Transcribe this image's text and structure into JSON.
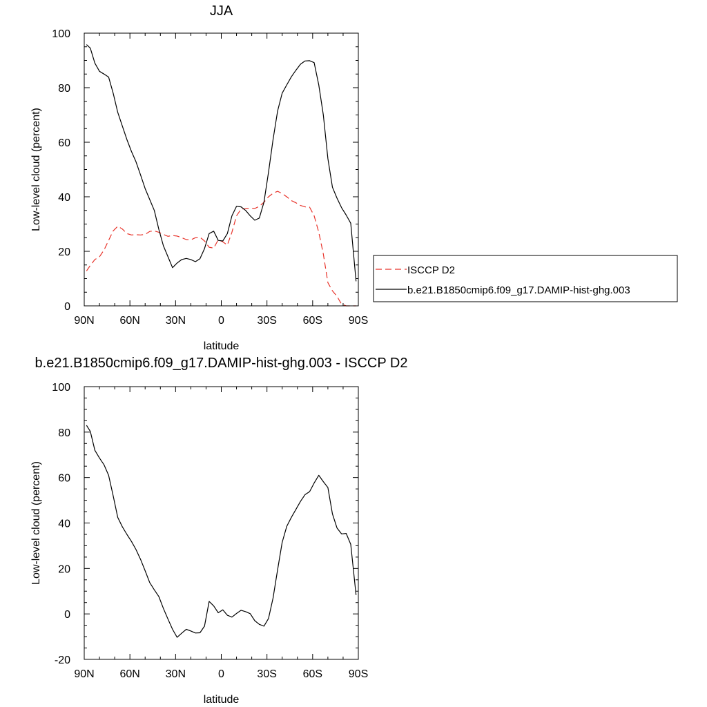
{
  "chart_data": [
    {
      "type": "line",
      "title": "JJA",
      "xlabel": "latitude",
      "ylabel": "Low-level cloud (percent)",
      "xlim": [
        -90,
        90
      ],
      "ylim": [
        0,
        100
      ],
      "x_tick_values": [
        -90,
        -60,
        -30,
        0,
        30,
        60,
        90
      ],
      "x_tick_labels": [
        "90N",
        "60N",
        "30N",
        "0",
        "30S",
        "60S",
        "90S"
      ],
      "y_ticks": [
        0,
        20,
        40,
        60,
        80,
        100
      ],
      "x_axis_note": "x measured from north (-90 = 90N) to south (90 = 90S)",
      "legend": {
        "position": "right"
      },
      "series": [
        {
          "name": "ISCCP D2",
          "color": "#e8332a",
          "dash": "dashed",
          "x": [
            -88.5,
            -86,
            -83,
            -80,
            -77,
            -74,
            -71,
            -68,
            -65,
            -62,
            -59,
            -56,
            -53,
            -50,
            -47,
            -44,
            -41,
            -38,
            -35,
            -32,
            -29,
            -26,
            -23,
            -20,
            -17,
            -14,
            -11,
            -8,
            -5,
            -2,
            1,
            4,
            7,
            10,
            13,
            16,
            19,
            22,
            25,
            28,
            31,
            34,
            37,
            40,
            43,
            46,
            49,
            52,
            55,
            58,
            61,
            64,
            67,
            70,
            73,
            76,
            79,
            82,
            85,
            88.5
          ],
          "y": [
            12.8,
            14.8,
            17,
            18,
            20.5,
            24,
            27.5,
            29.2,
            28.2,
            26.5,
            26,
            26.1,
            26,
            26.2,
            27.3,
            27.5,
            27,
            26.2,
            25.5,
            25.8,
            25.6,
            25,
            24.3,
            24.2,
            25,
            25.2,
            23.8,
            21.5,
            21.2,
            24.2,
            23.5,
            22.3,
            27,
            33,
            35.5,
            35.6,
            35.8,
            35.7,
            36.5,
            38,
            40,
            41.3,
            42,
            41.2,
            40,
            38.6,
            37.8,
            36.8,
            36.3,
            36.2,
            33,
            27,
            19,
            8.5,
            5.5,
            3.5,
            0.6,
            0,
            0,
            0
          ]
        },
        {
          "name": "b.e21.B1850cmip6.f09_g17.DAMIP-hist-ghg.003",
          "color": "#000000",
          "dash": "solid",
          "x": [
            -88.5,
            -86,
            -83,
            -80,
            -77,
            -74,
            -71,
            -68,
            -65,
            -62,
            -59,
            -56,
            -53,
            -50,
            -47,
            -44,
            -41,
            -38,
            -35,
            -32,
            -29,
            -26,
            -23,
            -20,
            -17,
            -14,
            -11,
            -8,
            -5,
            -2,
            1,
            4,
            7,
            10,
            13,
            16,
            19,
            22,
            25,
            28,
            31,
            34,
            37,
            40,
            43,
            46,
            49,
            52,
            55,
            58,
            61,
            64,
            67,
            70,
            73,
            76,
            79,
            82,
            85,
            88.5
          ],
          "y": [
            95.8,
            94.5,
            89,
            86,
            85,
            83.9,
            78,
            71,
            66,
            61,
            56.6,
            52.8,
            48,
            43,
            39,
            35,
            28,
            22,
            18,
            14,
            15.7,
            17,
            17.4,
            17,
            16.2,
            17.3,
            21,
            26.5,
            27.4,
            24,
            23.8,
            26.5,
            33,
            36.5,
            36.3,
            35,
            33,
            31.4,
            32.2,
            38,
            49,
            61,
            71.5,
            78,
            81,
            84,
            86.4,
            88.6,
            89.8,
            89.9,
            89.2,
            81,
            70,
            54,
            43.5,
            39.5,
            36,
            33.3,
            30.3,
            9
          ]
        }
      ]
    },
    {
      "type": "line",
      "title": "b.e21.B1850cmip6.f09_g17.DAMIP-hist-ghg.003 - ISCCP D2",
      "xlabel": "latitude",
      "ylabel": "Low-level cloud (percent)",
      "xlim": [
        -90,
        90
      ],
      "ylim": [
        -20,
        100
      ],
      "x_tick_values": [
        -90,
        -60,
        -30,
        0,
        30,
        60,
        90
      ],
      "x_tick_labels": [
        "90N",
        "60N",
        "30N",
        "0",
        "30S",
        "60S",
        "90S"
      ],
      "y_ticks": [
        -20,
        0,
        20,
        40,
        60,
        80,
        100
      ],
      "series": [
        {
          "color": "#000000",
          "dash": "solid",
          "x": [
            -88.5,
            -86,
            -83,
            -80,
            -77,
            -74,
            -71,
            -68,
            -65,
            -62,
            -59,
            -56,
            -53,
            -50,
            -47,
            -44,
            -41,
            -38,
            -35,
            -32,
            -29,
            -26,
            -23,
            -20,
            -17,
            -14,
            -11,
            -8,
            -5,
            -2,
            1,
            4,
            7,
            10,
            13,
            16,
            19,
            22,
            25,
            28,
            31,
            34,
            37,
            40,
            43,
            46,
            49,
            52,
            55,
            58,
            61,
            64,
            67,
            70,
            73,
            76,
            79,
            82,
            85,
            88.5
          ],
          "y": [
            83,
            80.3,
            72,
            68.6,
            65.6,
            61,
            52,
            42.5,
            38.4,
            35,
            31.9,
            28.3,
            24,
            19,
            13.8,
            10.6,
            7.6,
            2.4,
            -2.3,
            -6.8,
            -10.3,
            -8.5,
            -6.8,
            -7.5,
            -8.4,
            -8.3,
            -5.4,
            5.5,
            3.5,
            0.5,
            1.8,
            -0.6,
            -1.4,
            0.2,
            1.6,
            1,
            0.1,
            -3,
            -4.6,
            -5.4,
            -2,
            7,
            19.5,
            31.5,
            38.5,
            42.5,
            46,
            49.5,
            52.5,
            53.8,
            57.6,
            61,
            58.2,
            55.6,
            44,
            37.8,
            35.2,
            35.4,
            30.6,
            8.3
          ]
        }
      ]
    }
  ]
}
